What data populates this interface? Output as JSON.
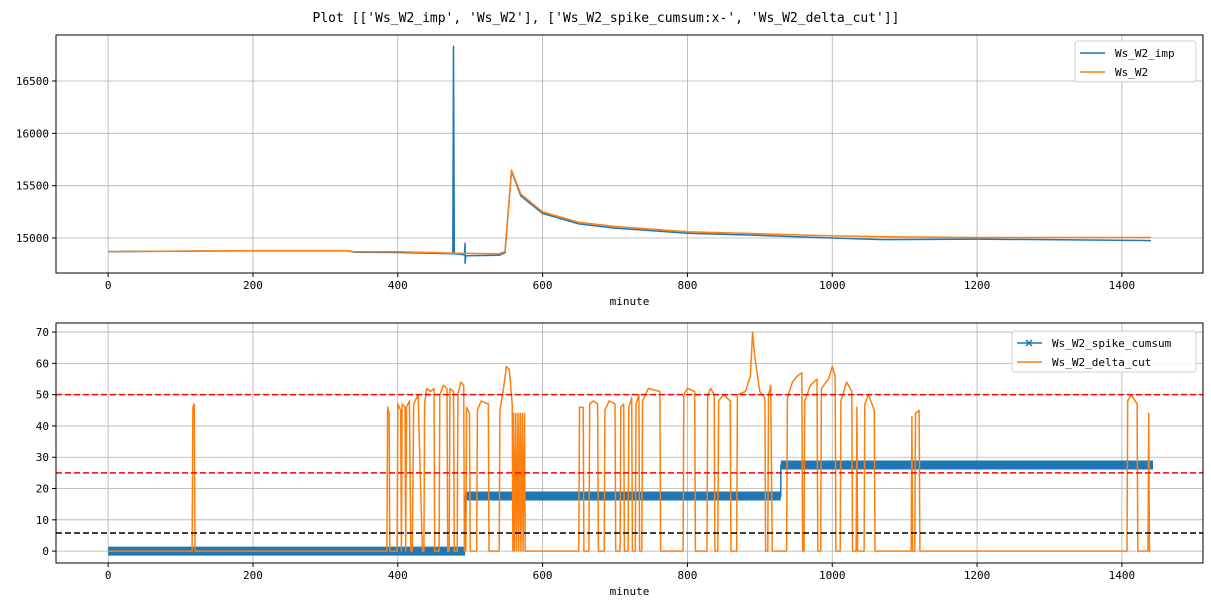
{
  "title": "Plot [['Ws_W2_imp', 'Ws_W2'], ['Ws_W2_spike_cumsum:x-', 'Ws_W2_delta_cut']]",
  "chart_data": [
    {
      "type": "line",
      "xlabel": "minute",
      "ylabel": "",
      "xlim": [
        -72,
        1512
      ],
      "ylim": [
        14666,
        16939
      ],
      "xticks": [
        0,
        200,
        400,
        600,
        800,
        1000,
        1200,
        1400
      ],
      "yticks": [
        15000,
        15500,
        16000,
        16500
      ],
      "grid": true,
      "legend": "top-right",
      "series": [
        {
          "name": "Ws_W2_imp",
          "color": "#1f77b4",
          "points": [
            [
              0,
              14870
            ],
            [
              200,
              14878
            ],
            [
              330,
              14878
            ],
            [
              340,
              14865
            ],
            [
              400,
              14862
            ],
            [
              476,
              14850
            ],
            [
              477,
              16830
            ],
            [
              478,
              14850
            ],
            [
              492,
              14840
            ],
            [
              493,
              14950
            ],
            [
              493,
              14760
            ],
            [
              494,
              14830
            ],
            [
              540,
              14835
            ],
            [
              548,
              14860
            ],
            [
              557,
              15640
            ],
            [
              570,
              15400
            ],
            [
              600,
              15235
            ],
            [
              650,
              15135
            ],
            [
              700,
              15095
            ],
            [
              800,
              15045
            ],
            [
              900,
              15025
            ],
            [
              1000,
              15000
            ],
            [
              1070,
              14985
            ],
            [
              1200,
              14990
            ],
            [
              1440,
              14975
            ]
          ]
        },
        {
          "name": "Ws_W2",
          "color": "#ff7f0e",
          "points": [
            [
              0,
              14870
            ],
            [
              200,
              14880
            ],
            [
              330,
              14880
            ],
            [
              340,
              14868
            ],
            [
              400,
              14868
            ],
            [
              480,
              14855
            ],
            [
              540,
              14850
            ],
            [
              548,
              14870
            ],
            [
              557,
              15650
            ],
            [
              570,
              15420
            ],
            [
              600,
              15250
            ],
            [
              650,
              15150
            ],
            [
              700,
              15110
            ],
            [
              800,
              15060
            ],
            [
              900,
              15040
            ],
            [
              1000,
              15020
            ],
            [
              1100,
              15010
            ],
            [
              1200,
              15005
            ],
            [
              1440,
              15005
            ]
          ]
        }
      ]
    },
    {
      "type": "line",
      "xlabel": "minute",
      "ylabel": "",
      "xlim": [
        -72,
        1512
      ],
      "ylim": [
        -3.8,
        72.9
      ],
      "xticks": [
        0,
        200,
        400,
        600,
        800,
        1000,
        1200,
        1400
      ],
      "yticks": [
        0,
        10,
        20,
        30,
        40,
        50,
        60,
        70
      ],
      "grid": true,
      "legend": "top-right",
      "hlines": [
        {
          "y": 50,
          "color": "#ff0000",
          "style": "dashed"
        },
        {
          "y": 25,
          "color": "#ff0000",
          "style": "dashed"
        },
        {
          "y": 5.8,
          "color": "#000000",
          "style": "dashed"
        }
      ],
      "series": [
        {
          "name": "Ws_W2_spike_cumsum",
          "color": "#1f77b4",
          "marker": "x",
          "points": [
            [
              0,
              0
            ],
            [
              493,
              0
            ],
            [
              493,
              17.6
            ],
            [
              929,
              17.6
            ],
            [
              929,
              27.5
            ],
            [
              1443,
              27.5
            ]
          ]
        },
        {
          "name": "Ws_W2_delta_cut",
          "color": "#ff7f0e",
          "points": [
            [
              0,
              0
            ],
            [
              116,
              0
            ],
            [
              117,
              46
            ],
            [
              119,
              47
            ],
            [
              120,
              0
            ],
            [
              385,
              0
            ],
            [
              386,
              46
            ],
            [
              388,
              44
            ],
            [
              389,
              0
            ],
            [
              399,
              0
            ],
            [
              400,
              47
            ],
            [
              404,
              45
            ],
            [
              405,
              0
            ],
            [
              406,
              47
            ],
            [
              410,
              46
            ],
            [
              411,
              0
            ],
            [
              412,
              46
            ],
            [
              416,
              48
            ],
            [
              418,
              0
            ],
            [
              420,
              0
            ],
            [
              422,
              47
            ],
            [
              428,
              50
            ],
            [
              434,
              0
            ],
            [
              436,
              0
            ],
            [
              437,
              47
            ],
            [
              440,
              52
            ],
            [
              445,
              51
            ],
            [
              450,
              52
            ],
            [
              451,
              0
            ],
            [
              457,
              0
            ],
            [
              458,
              50
            ],
            [
              463,
              53
            ],
            [
              468,
              52
            ],
            [
              469,
              0
            ],
            [
              471,
              0
            ],
            [
              472,
              52
            ],
            [
              477,
              51
            ],
            [
              478,
              0
            ],
            [
              482,
              0
            ],
            [
              483,
              50
            ],
            [
              487,
              54
            ],
            [
              491,
              53
            ],
            [
              492,
              0
            ],
            [
              494,
              0
            ],
            [
              495,
              46
            ],
            [
              499,
              44
            ],
            [
              500,
              0
            ],
            [
              509,
              0
            ],
            [
              510,
              45
            ],
            [
              515,
              48
            ],
            [
              525,
              47
            ],
            [
              526,
              0
            ],
            [
              540,
              0
            ],
            [
              541,
              45
            ],
            [
              546,
              52
            ],
            [
              550,
              59
            ],
            [
              554,
              58
            ],
            [
              558,
              47
            ],
            [
              559,
              0
            ],
            [
              560,
              44
            ],
            [
              561,
              0
            ],
            [
              563,
              44
            ],
            [
              564,
              0
            ],
            [
              566,
              44
            ],
            [
              567,
              0
            ],
            [
              569,
              44
            ],
            [
              570,
              0
            ],
            [
              572,
              44
            ],
            [
              573,
              0
            ],
            [
              575,
              44
            ],
            [
              576,
              0
            ],
            [
              650,
              0
            ],
            [
              651,
              46
            ],
            [
              656,
              46
            ],
            [
              657,
              0
            ],
            [
              664,
              0
            ],
            [
              665,
              47
            ],
            [
              670,
              48
            ],
            [
              676,
              47
            ],
            [
              677,
              0
            ],
            [
              685,
              0
            ],
            [
              686,
              45
            ],
            [
              692,
              48
            ],
            [
              700,
              47
            ],
            [
              701,
              0
            ],
            [
              707,
              0
            ],
            [
              708,
              46
            ],
            [
              712,
              47
            ],
            [
              713,
              0
            ],
            [
              718,
              0
            ],
            [
              719,
              46
            ],
            [
              723,
              49
            ],
            [
              724,
              0
            ],
            [
              728,
              0
            ],
            [
              729,
              47
            ],
            [
              733,
              50
            ],
            [
              734,
              0
            ],
            [
              737,
              0
            ],
            [
              738,
              48
            ],
            [
              746,
              52
            ],
            [
              762,
              51
            ],
            [
              763,
              0
            ],
            [
              794,
              0
            ],
            [
              795,
              50
            ],
            [
              800,
              52
            ],
            [
              810,
              51
            ],
            [
              811,
              0
            ],
            [
              827,
              0
            ],
            [
              828,
              50
            ],
            [
              832,
              52
            ],
            [
              837,
              50
            ],
            [
              838,
              0
            ],
            [
              842,
              0
            ],
            [
              843,
              48
            ],
            [
              850,
              50
            ],
            [
              859,
              48
            ],
            [
              860,
              0
            ],
            [
              868,
              0
            ],
            [
              869,
              50
            ],
            [
              880,
              51
            ],
            [
              887,
              56
            ],
            [
              890,
              70
            ],
            [
              893,
              62
            ],
            [
              900,
              51
            ],
            [
              907,
              49
            ],
            [
              908,
              0
            ],
            [
              911,
              0
            ],
            [
              912,
              50
            ],
            [
              915,
              53
            ],
            [
              917,
              0
            ],
            [
              937,
              0
            ],
            [
              938,
              49
            ],
            [
              945,
              54
            ],
            [
              952,
              56
            ],
            [
              958,
              57
            ],
            [
              959,
              0
            ],
            [
              961,
              0
            ],
            [
              962,
              48
            ],
            [
              970,
              53
            ],
            [
              979,
              55
            ],
            [
              980,
              0
            ],
            [
              984,
              0
            ],
            [
              985,
              52
            ],
            [
              995,
              55
            ],
            [
              1000,
              59
            ],
            [
              1004,
              56
            ],
            [
              1005,
              0
            ],
            [
              1011,
              0
            ],
            [
              1012,
              48
            ],
            [
              1020,
              54
            ],
            [
              1027,
              51
            ],
            [
              1028,
              0
            ],
            [
              1033,
              0
            ],
            [
              1034,
              46
            ],
            [
              1035,
              0
            ],
            [
              1044,
              0
            ],
            [
              1045,
              47
            ],
            [
              1050,
              50
            ],
            [
              1058,
              45
            ],
            [
              1059,
              0
            ],
            [
              1109,
              0
            ],
            [
              1110,
              43
            ],
            [
              1111,
              0
            ],
            [
              1114,
              0
            ],
            [
              1115,
              44
            ],
            [
              1120,
              45
            ],
            [
              1121,
              0
            ],
            [
              1407,
              0
            ],
            [
              1408,
              48
            ],
            [
              1413,
              50
            ],
            [
              1421,
              47
            ],
            [
              1422,
              0
            ],
            [
              1436,
              0
            ],
            [
              1437,
              44
            ],
            [
              1438,
              0
            ],
            [
              1440,
              0
            ]
          ]
        }
      ]
    }
  ]
}
